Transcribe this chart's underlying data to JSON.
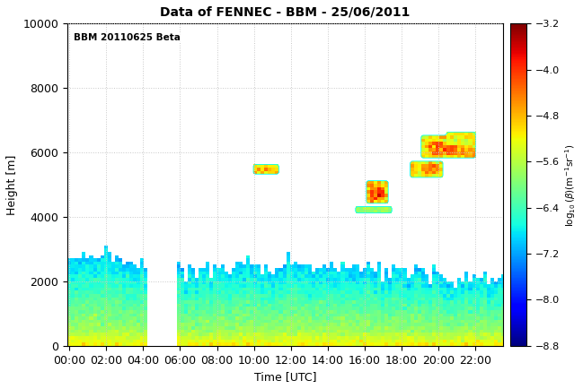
{
  "title": "Data of FENNEC - BBM - 25/06/2011",
  "xlabel": "Time [UTC]",
  "ylabel": "Height [m]",
  "annotation": "BBM 20110625 Beta",
  "colorbar_label": "log₁₀(β)(m⁻¹sr⁻¹)",
  "vmin": -8.8,
  "vmax": -3.2,
  "ylim": [
    0,
    10000
  ],
  "time_ticks": [
    0,
    2,
    4,
    6,
    8,
    10,
    12,
    14,
    16,
    18,
    20,
    22
  ],
  "time_tick_labels": [
    "00:00",
    "02:00",
    "04:00",
    "06:00",
    "08:00",
    "10:00",
    "12:00",
    "14:00",
    "16:00",
    "18:00",
    "20:00",
    "22:00"
  ],
  "yticks": [
    0,
    2000,
    4000,
    6000,
    8000,
    10000
  ],
  "colormap": "jet",
  "background_color": "#ffffff",
  "grid_color": "#c8c8c8",
  "title_fontsize": 10,
  "label_fontsize": 9
}
